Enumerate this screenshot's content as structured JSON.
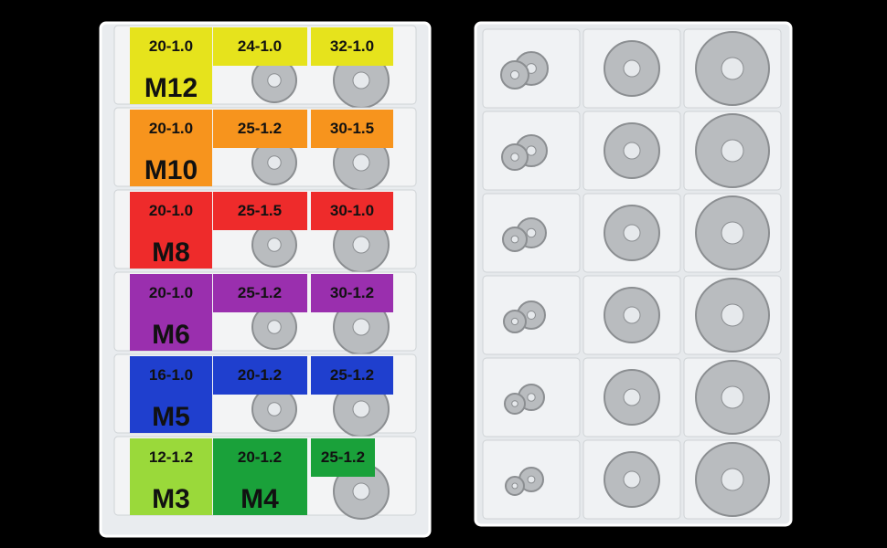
{
  "left_box": {
    "rows": [
      {
        "specs": [
          "20-1.0",
          "24-1.0",
          "32-1.0"
        ],
        "sizes": [
          "M12"
        ]
      },
      {
        "specs": [
          "20-1.0",
          "25-1.2",
          "30-1.5"
        ],
        "sizes": [
          "M10"
        ]
      },
      {
        "specs": [
          "20-1.0",
          "25-1.5",
          "30-1.0"
        ],
        "sizes": [
          "M8"
        ]
      },
      {
        "specs": [
          "20-1.0",
          "25-1.2",
          "30-1.2"
        ],
        "sizes": [
          "M6"
        ]
      },
      {
        "specs": [
          "16-1.0",
          "20-1.2",
          "25-1.2"
        ],
        "sizes": [
          "M5"
        ]
      },
      {
        "specs": [
          "12-1.2",
          "20-1.2",
          "25-1.2"
        ],
        "sizes": [
          "M3",
          "M4"
        ]
      }
    ]
  }
}
